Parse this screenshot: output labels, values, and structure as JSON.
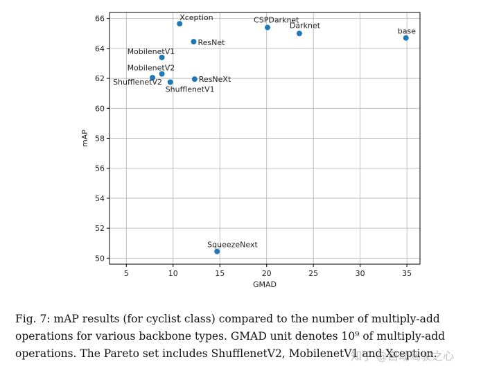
{
  "chart_data": {
    "type": "scatter",
    "xlabel": "GMAD",
    "ylabel": "mAP",
    "xlim": [
      3.2,
      36.4
    ],
    "ylim": [
      49.6,
      66.4
    ],
    "xticks": [
      5,
      10,
      15,
      20,
      25,
      30,
      35
    ],
    "yticks": [
      50,
      52,
      54,
      56,
      58,
      60,
      62,
      64,
      66
    ],
    "grid": true,
    "color": "#1f77b4",
    "points": [
      {
        "label": "Xception",
        "x": 10.7,
        "y": 65.65
      },
      {
        "label": "ResNet",
        "x": 12.2,
        "y": 64.45
      },
      {
        "label": "CSPDarknet",
        "x": 20.1,
        "y": 65.4
      },
      {
        "label": "Darknet",
        "x": 23.5,
        "y": 65.0
      },
      {
        "label": "base",
        "x": 34.9,
        "y": 64.7
      },
      {
        "label": "MobilenetV1",
        "x": 8.8,
        "y": 63.4
      },
      {
        "label": "MobilenetV2",
        "x": 8.8,
        "y": 62.3
      },
      {
        "label": "ShufflenetV2",
        "x": 7.8,
        "y": 62.05
      },
      {
        "label": "ShufflenetV1",
        "x": 9.7,
        "y": 61.75
      },
      {
        "label": "ResNeXt",
        "x": 12.3,
        "y": 61.95
      },
      {
        "label": "SqueezeNext",
        "x": 14.7,
        "y": 50.45
      }
    ]
  },
  "caption": {
    "text": "Fig. 7: mAP results (for cyclist class) compared to the number of multiply-add operations for various backbone types. GMAD unit denotes 10⁹ of multiply-add operations. The Pareto set includes ShufflenetV2, MobilenetV1 and Xception."
  },
  "watermark": "知乎 @自动驾驶之心"
}
